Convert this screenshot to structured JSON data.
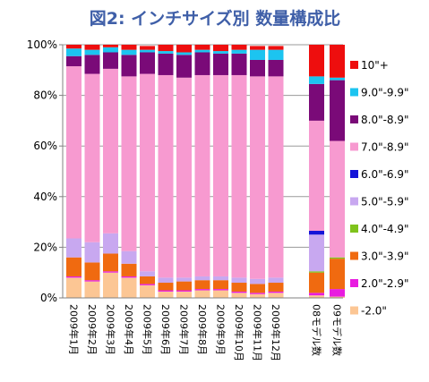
{
  "chart_data": {
    "type": "bar",
    "stacked": true,
    "percent": true,
    "title": "図2:  インチサイズ別  数量構成比",
    "categories": [
      "2009年1月",
      "2009年2月",
      "2009年3月",
      "2009年4月",
      "2009年5月",
      "2009年6月",
      "2009年7月",
      "2009年8月",
      "2009年9月",
      "2009年10月",
      "2009年11月",
      "2009年12月",
      "08モデル数",
      "09モデル数"
    ],
    "y_ticks": [
      "0%",
      "20%",
      "40%",
      "60%",
      "80%",
      "100%"
    ],
    "ylim": [
      0,
      100
    ],
    "grid": true,
    "legend_position": "right",
    "series": [
      {
        "name": "-2.0\"",
        "color": "#fcc694",
        "values": [
          8,
          6.5,
          10,
          8,
          5,
          2.5,
          2.5,
          3,
          3,
          2,
          1.5,
          2,
          1,
          0.5
        ]
      },
      {
        "name": "2.0\"-2.9\"",
        "color": "#e81ce0",
        "values": [
          0.5,
          0.5,
          0.5,
          0.5,
          0.5,
          0.5,
          0.5,
          0.5,
          0.5,
          0.5,
          0.5,
          0.5,
          1,
          3
        ]
      },
      {
        "name": "3.0\"-3.9\"",
        "color": "#f06a10",
        "values": [
          7.5,
          7,
          7,
          5,
          3,
          3,
          3.5,
          3.5,
          3.5,
          3.5,
          3.5,
          3.5,
          8,
          12
        ]
      },
      {
        "name": "4.0\"-4.9\"",
        "color": "#7fc31c",
        "values": [
          0,
          0,
          0,
          0,
          0,
          0,
          0,
          0,
          0,
          0,
          0,
          0,
          0.5,
          0.5
        ]
      },
      {
        "name": "5.0\"-5.9\"",
        "color": "#c8a8f0",
        "values": [
          7.5,
          8,
          8,
          5,
          2,
          2,
          1.5,
          1.5,
          1.5,
          2,
          2,
          2,
          14.5,
          0
        ]
      },
      {
        "name": "6.0\"-6.9\"",
        "color": "#1414d8",
        "values": [
          0,
          0,
          0,
          0,
          0,
          0,
          0,
          0,
          0,
          0,
          0,
          0,
          1.5,
          0
        ]
      },
      {
        "name": "7.0\"-8.9\"",
        "color": "#f79ad0",
        "values": [
          68,
          66.5,
          65,
          69,
          78,
          80,
          79,
          79.5,
          79.5,
          80,
          80,
          79.5,
          43.5,
          46
        ]
      },
      {
        "name": "8.0\"-8.9\"",
        "color": "#7a0a78",
        "values": [
          4,
          7.5,
          6.5,
          8.5,
          8.5,
          8.5,
          9,
          9,
          8.5,
          8.5,
          6.5,
          6.5,
          14.5,
          24
        ]
      },
      {
        "name": "9.0\"-9.9\"",
        "color": "#1cc4f0",
        "values": [
          3,
          2,
          2,
          2,
          1,
          1,
          1,
          1,
          1,
          1.5,
          4,
          4,
          3,
          1
        ]
      },
      {
        "name": "10\"+",
        "color": "#ee0e0e",
        "values": [
          1.5,
          2,
          1,
          2,
          1.5,
          2.5,
          3,
          2,
          2.5,
          2,
          1.5,
          1.5,
          12.5,
          13
        ]
      }
    ]
  }
}
